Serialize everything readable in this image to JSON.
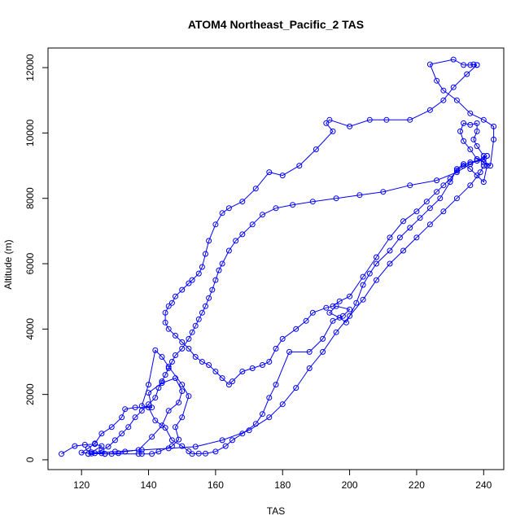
{
  "chart_data": {
    "type": "line",
    "title": "ATOM4 Northeast_Pacific_2 TAS",
    "xlabel": "TAS",
    "ylabel": "Altitude (m)",
    "xlim": [
      110,
      246
    ],
    "ylim": [
      -300,
      12600
    ],
    "x_ticks": [
      120,
      140,
      160,
      180,
      200,
      220,
      240
    ],
    "y_ticks": [
      0,
      2000,
      4000,
      6000,
      8000,
      10000,
      12000
    ],
    "grid": false,
    "legend": "none",
    "color": "#0000ff",
    "series": [
      {
        "points": [
          [
            114,
            180
          ],
          [
            118,
            420
          ],
          [
            121,
            460
          ],
          [
            124,
            480
          ],
          [
            126,
            420
          ],
          [
            123,
            230
          ],
          [
            126,
            200
          ],
          [
            127,
            180
          ],
          [
            129,
            180
          ],
          [
            137,
            180
          ],
          [
            138,
            180
          ],
          [
            141,
            180
          ],
          [
            143,
            250
          ],
          [
            147,
            420
          ],
          [
            149,
            620
          ],
          [
            148,
            1000
          ],
          [
            150,
            1300
          ],
          [
            152,
            1950
          ],
          [
            150,
            2300
          ],
          [
            146,
            2850
          ],
          [
            144,
            3150
          ],
          [
            142,
            3350
          ],
          [
            140,
            2300
          ],
          [
            138,
            1650
          ],
          [
            141,
            1600
          ],
          [
            140,
            2050
          ],
          [
            144,
            2350
          ],
          [
            148,
            2500
          ],
          [
            150,
            2100
          ],
          [
            149,
            1750
          ],
          [
            146,
            1500
          ],
          [
            144,
            1050
          ],
          [
            141,
            700
          ],
          [
            137,
            300
          ],
          [
            133,
            250
          ],
          [
            131,
            200
          ],
          [
            127,
            180
          ],
          [
            123,
            190
          ],
          [
            120,
            220
          ],
          [
            122,
            350
          ],
          [
            124,
            500
          ],
          [
            126,
            800
          ],
          [
            129,
            1000
          ],
          [
            132,
            1300
          ],
          [
            133,
            1550
          ],
          [
            136,
            1600
          ],
          [
            140,
            1600
          ],
          [
            142,
            1200
          ],
          [
            145,
            980
          ],
          [
            147,
            600
          ],
          [
            150,
            420
          ],
          [
            152,
            260
          ],
          [
            153,
            180
          ],
          [
            155,
            190
          ],
          [
            157,
            190
          ],
          [
            160,
            250
          ],
          [
            163,
            420
          ],
          [
            165,
            600
          ],
          [
            168,
            800
          ],
          [
            172,
            1100
          ],
          [
            174,
            1400
          ],
          [
            176,
            1900
          ],
          [
            178,
            2300
          ],
          [
            182,
            3300
          ],
          [
            188,
            3300
          ],
          [
            192,
            3700
          ],
          [
            195,
            4250
          ],
          [
            198,
            4400
          ],
          [
            200,
            4600
          ],
          [
            196,
            4700
          ],
          [
            194,
            4500
          ],
          [
            197,
            4350
          ],
          [
            199,
            4200
          ],
          [
            202,
            4800
          ],
          [
            204,
            5350
          ],
          [
            206,
            5700
          ],
          [
            208,
            6000
          ],
          [
            212,
            6400
          ],
          [
            215,
            6800
          ],
          [
            218,
            7100
          ],
          [
            221,
            7400
          ],
          [
            224,
            7700
          ],
          [
            227,
            8000
          ],
          [
            230,
            8500
          ],
          [
            232,
            8900
          ],
          [
            234,
            9050
          ],
          [
            236,
            8900
          ],
          [
            238,
            8700
          ],
          [
            240,
            8500
          ],
          [
            241,
            9000
          ],
          [
            240,
            9300
          ],
          [
            238,
            9600
          ],
          [
            237,
            9800
          ],
          [
            238,
            10050
          ],
          [
            238,
            10300
          ],
          [
            236,
            10250
          ],
          [
            234,
            10300
          ],
          [
            233,
            10050
          ],
          [
            234,
            9750
          ],
          [
            236,
            9500
          ],
          [
            238,
            9200
          ],
          [
            240,
            9100
          ],
          [
            242,
            9000
          ],
          [
            243,
            9800
          ],
          [
            243,
            10200
          ],
          [
            240,
            10400
          ],
          [
            236,
            10600
          ],
          [
            232,
            11000
          ],
          [
            228,
            11300
          ],
          [
            226,
            11600
          ],
          [
            224,
            12100
          ],
          [
            231,
            12250
          ],
          [
            234,
            12080
          ],
          [
            236,
            12080
          ],
          [
            237,
            12100
          ],
          [
            238,
            12080
          ]
        ]
      },
      {
        "points": [
          [
            238,
            12080
          ],
          [
            235,
            11800
          ],
          [
            231,
            11400
          ],
          [
            228,
            11000
          ],
          [
            224,
            10700
          ],
          [
            218,
            10400
          ],
          [
            211,
            10400
          ],
          [
            206,
            10400
          ],
          [
            200,
            10200
          ],
          [
            194,
            10400
          ],
          [
            193,
            10300
          ],
          [
            195,
            10050
          ],
          [
            190,
            9500
          ],
          [
            185,
            9000
          ],
          [
            180,
            8700
          ],
          [
            176,
            8800
          ],
          [
            172,
            8300
          ],
          [
            168,
            7900
          ],
          [
            164,
            7700
          ],
          [
            162,
            7550
          ],
          [
            160,
            7200
          ],
          [
            158,
            6700
          ],
          [
            157,
            6300
          ],
          [
            156,
            5900
          ],
          [
            155,
            5700
          ],
          [
            153,
            5500
          ],
          [
            152,
            5400
          ],
          [
            150,
            5200
          ],
          [
            148,
            5000
          ],
          [
            147,
            4800
          ],
          [
            146,
            4700
          ],
          [
            145,
            4500
          ],
          [
            145,
            4200
          ],
          [
            146,
            4000
          ],
          [
            148,
            3800
          ],
          [
            150,
            3600
          ],
          [
            152,
            3400
          ],
          [
            154,
            3150
          ],
          [
            156,
            3000
          ],
          [
            158,
            2900
          ],
          [
            160,
            2700
          ],
          [
            162,
            2500
          ],
          [
            164,
            2300
          ],
          [
            165,
            2400
          ],
          [
            168,
            2700
          ],
          [
            171,
            2800
          ],
          [
            174,
            2900
          ],
          [
            176,
            3000
          ],
          [
            178,
            3400
          ],
          [
            180,
            3700
          ],
          [
            184,
            4000
          ],
          [
            187,
            4250
          ],
          [
            189,
            4500
          ],
          [
            193,
            4650
          ],
          [
            195,
            4700
          ],
          [
            197,
            4850
          ],
          [
            200,
            5000
          ],
          [
            204,
            5600
          ],
          [
            208,
            6200
          ],
          [
            212,
            6800
          ],
          [
            216,
            7300
          ],
          [
            220,
            7600
          ],
          [
            223,
            7900
          ],
          [
            226,
            8200
          ],
          [
            228,
            8400
          ],
          [
            230,
            8600
          ],
          [
            232,
            8850
          ],
          [
            234,
            9000
          ],
          [
            236,
            9100
          ],
          [
            238,
            9150
          ],
          [
            240,
            9200
          ],
          [
            241,
            9300
          ]
        ]
      },
      {
        "points": [
          [
            241,
            9300
          ],
          [
            236,
            9050
          ],
          [
            232,
            8800
          ],
          [
            226,
            8550
          ],
          [
            218,
            8400
          ],
          [
            210,
            8200
          ],
          [
            203,
            8100
          ],
          [
            196,
            8000
          ],
          [
            189,
            7900
          ],
          [
            183,
            7800
          ],
          [
            178,
            7700
          ],
          [
            174,
            7500
          ],
          [
            171,
            7200
          ],
          [
            168,
            6900
          ],
          [
            166,
            6700
          ],
          [
            164,
            6400
          ],
          [
            162,
            6000
          ],
          [
            161,
            5800
          ],
          [
            160,
            5500
          ],
          [
            159,
            5200
          ],
          [
            158,
            4950
          ],
          [
            157,
            4700
          ],
          [
            156,
            4500
          ],
          [
            155,
            4300
          ],
          [
            154,
            4100
          ],
          [
            153,
            3900
          ],
          [
            152,
            3700
          ],
          [
            150,
            3400
          ],
          [
            148,
            3200
          ],
          [
            147,
            3000
          ],
          [
            146,
            2800
          ],
          [
            145,
            2600
          ],
          [
            144,
            2400
          ],
          [
            143,
            2200
          ],
          [
            142,
            1900
          ],
          [
            140,
            1700
          ],
          [
            138,
            1500
          ],
          [
            136,
            1300
          ],
          [
            134,
            1000
          ],
          [
            132,
            800
          ],
          [
            130,
            600
          ],
          [
            128,
            400
          ],
          [
            126,
            300
          ],
          [
            124,
            200
          ],
          [
            122,
            180
          ]
        ]
      },
      {
        "points": [
          [
            122,
            180
          ],
          [
            130,
            250
          ],
          [
            138,
            300
          ],
          [
            146,
            350
          ],
          [
            154,
            400
          ],
          [
            162,
            600
          ],
          [
            170,
            900
          ],
          [
            176,
            1300
          ],
          [
            180,
            1700
          ],
          [
            184,
            2200
          ],
          [
            188,
            2800
          ],
          [
            192,
            3300
          ],
          [
            196,
            3900
          ],
          [
            200,
            4400
          ],
          [
            204,
            4900
          ],
          [
            208,
            5500
          ],
          [
            212,
            6000
          ],
          [
            216,
            6400
          ],
          [
            220,
            6800
          ],
          [
            224,
            7200
          ],
          [
            228,
            7600
          ],
          [
            232,
            8000
          ],
          [
            236,
            8400
          ],
          [
            239,
            8800
          ],
          [
            240,
            9000
          ]
        ]
      }
    ]
  }
}
